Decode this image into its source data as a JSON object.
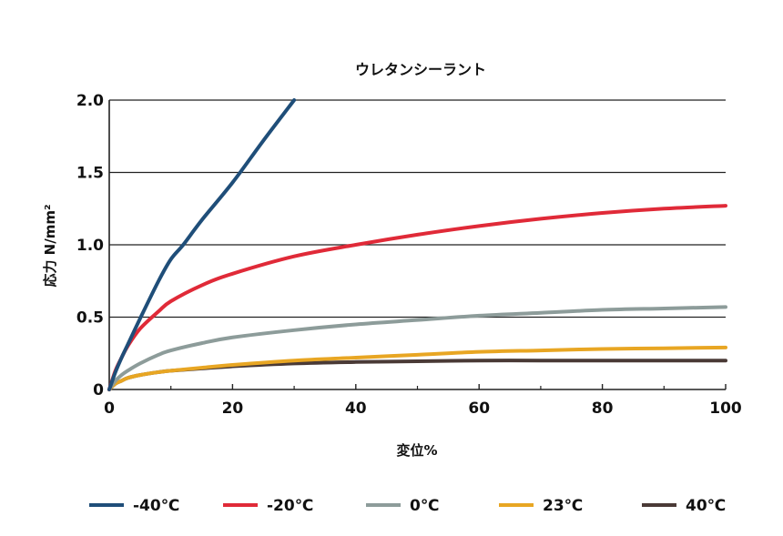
{
  "chart_data": {
    "type": "line",
    "title": "ウレタンシーラント",
    "xlabel": "変位%",
    "ylabel": "応力 N/mm²",
    "xlim": [
      0,
      100
    ],
    "ylim": [
      0,
      2.0
    ],
    "x_ticks": [
      "0",
      "20",
      "40",
      "60",
      "80",
      "100"
    ],
    "y_ticks": [
      "0",
      "0.5",
      "1.0",
      "1.5",
      "2.0"
    ],
    "grid": "horizontal",
    "legend_position": "bottom",
    "series": [
      {
        "name": "-40℃",
        "color": "#1f4e79",
        "x": [
          0,
          1,
          2,
          3,
          5,
          8,
          10,
          12,
          15,
          20,
          25,
          30
        ],
        "y": [
          0,
          0.12,
          0.22,
          0.31,
          0.49,
          0.75,
          0.9,
          1.0,
          1.17,
          1.43,
          1.72,
          2.0
        ]
      },
      {
        "name": "-20℃",
        "color": "#e02a38",
        "x": [
          0,
          1,
          2,
          3,
          5,
          8,
          10,
          15,
          20,
          30,
          40,
          50,
          60,
          70,
          80,
          90,
          100
        ],
        "y": [
          0,
          0.13,
          0.22,
          0.3,
          0.42,
          0.54,
          0.61,
          0.72,
          0.8,
          0.92,
          1.0,
          1.07,
          1.13,
          1.18,
          1.22,
          1.25,
          1.27
        ]
      },
      {
        "name": "0℃",
        "color": "#8d9c9a",
        "x": [
          0,
          1,
          2,
          3,
          5,
          8,
          10,
          15,
          20,
          30,
          40,
          50,
          60,
          70,
          80,
          90,
          100
        ],
        "y": [
          0,
          0.06,
          0.1,
          0.13,
          0.18,
          0.24,
          0.27,
          0.32,
          0.36,
          0.41,
          0.45,
          0.48,
          0.51,
          0.53,
          0.55,
          0.56,
          0.57
        ]
      },
      {
        "name": "23℃",
        "color": "#e8a623",
        "x": [
          0,
          1,
          2,
          3,
          5,
          8,
          10,
          15,
          20,
          30,
          40,
          50,
          60,
          70,
          80,
          90,
          100
        ],
        "y": [
          0,
          0.04,
          0.06,
          0.08,
          0.1,
          0.12,
          0.13,
          0.15,
          0.17,
          0.2,
          0.22,
          0.24,
          0.26,
          0.27,
          0.28,
          0.285,
          0.29
        ]
      },
      {
        "name": "40℃",
        "color": "#4a3a36",
        "x": [
          0,
          1,
          2,
          3,
          5,
          8,
          10,
          15,
          20,
          30,
          40,
          50,
          60,
          70,
          80,
          90,
          100
        ],
        "y": [
          0,
          0.04,
          0.06,
          0.08,
          0.1,
          0.12,
          0.13,
          0.145,
          0.16,
          0.18,
          0.19,
          0.195,
          0.2,
          0.2,
          0.2,
          0.2,
          0.2
        ]
      }
    ]
  }
}
